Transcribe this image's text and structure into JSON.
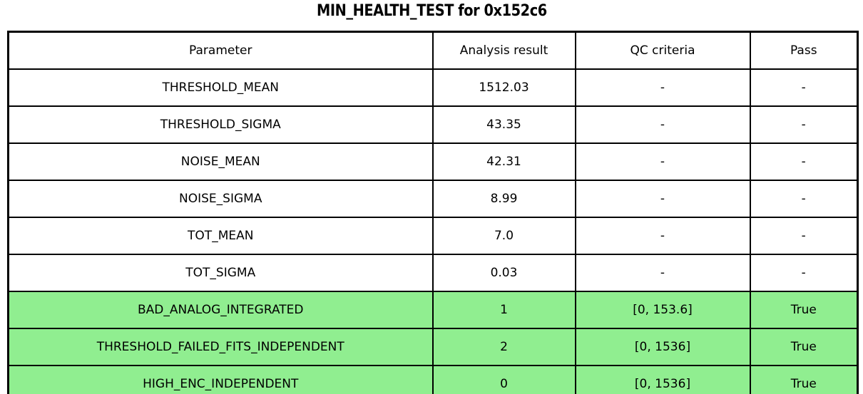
{
  "title": "MIN_HEALTH_TEST for 0x152c6",
  "colors": {
    "background": "#ffffff",
    "border": "#000000",
    "text": "#000000",
    "pass_row_bg": "#90ee90"
  },
  "chart_data": {
    "type": "table",
    "title": "MIN_HEALTH_TEST for 0x152c6",
    "columns": [
      "Parameter",
      "Analysis result",
      "QC criteria",
      "Pass"
    ],
    "rows": [
      [
        "THRESHOLD_MEAN",
        "1512.03",
        "-",
        "-"
      ],
      [
        "THRESHOLD_SIGMA",
        "43.35",
        "-",
        "-"
      ],
      [
        "NOISE_MEAN",
        "42.31",
        "-",
        "-"
      ],
      [
        "NOISE_SIGMA",
        "8.99",
        "-",
        "-"
      ],
      [
        "TOT_MEAN",
        "7.0",
        "-",
        "-"
      ],
      [
        "TOT_SIGMA",
        "0.03",
        "-",
        "-"
      ],
      [
        "BAD_ANALOG_INTEGRATED",
        "1",
        "[0, 153.6]",
        "True"
      ],
      [
        "THRESHOLD_FAILED_FITS_INDEPENDENT",
        "2",
        "[0, 1536]",
        "True"
      ],
      [
        "HIGH_ENC_INDEPENDENT",
        "0",
        "[0, 1536]",
        "True"
      ]
    ],
    "highlighted_rows": [
      6,
      7,
      8
    ],
    "highlight_color": "#90ee90",
    "grid": true,
    "legend": false
  }
}
